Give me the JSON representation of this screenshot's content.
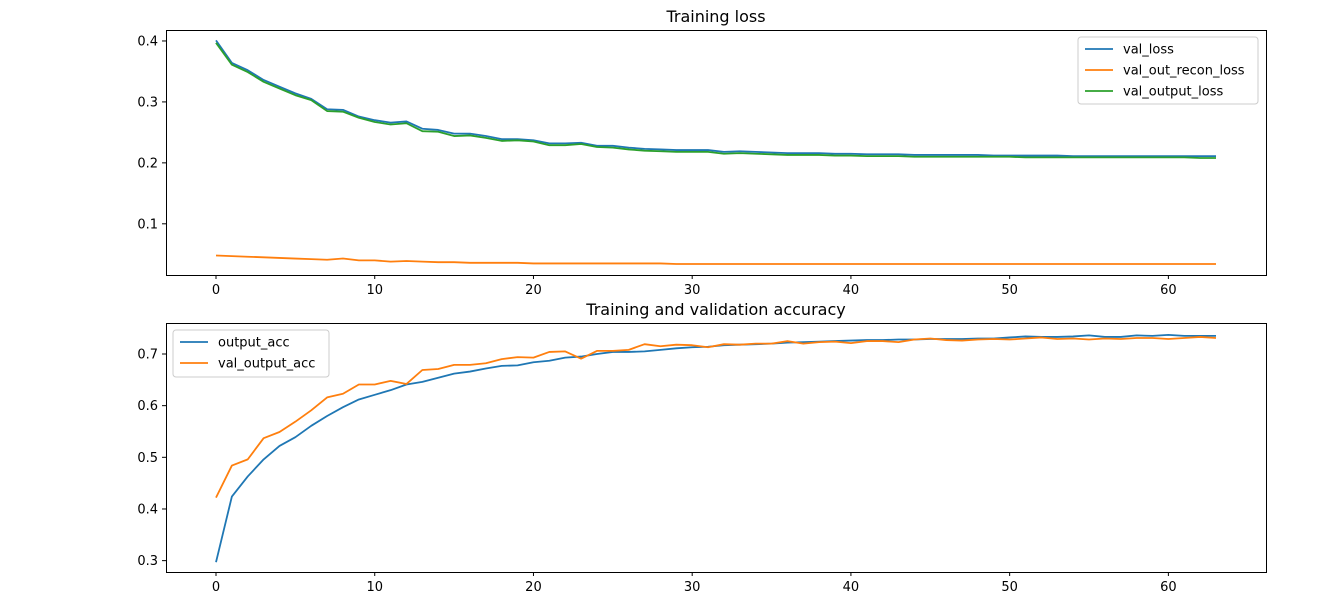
{
  "chart_data": [
    {
      "type": "line",
      "title": "Training loss",
      "xlabel": "",
      "ylabel": "",
      "xlim": [
        -3.15,
        66.15
      ],
      "ylim": [
        0.016,
        0.418
      ],
      "xticks": [
        0,
        10,
        20,
        30,
        40,
        50,
        60
      ],
      "yticks": [
        0.1,
        0.2,
        0.3,
        0.4
      ],
      "ytick_labels": [
        "0.1",
        "0.2",
        "0.3",
        "0.4"
      ],
      "grid": false,
      "legend": "upper right",
      "x": [
        0,
        1,
        2,
        3,
        4,
        5,
        6,
        7,
        8,
        9,
        10,
        11,
        12,
        13,
        14,
        15,
        16,
        17,
        18,
        19,
        20,
        21,
        22,
        23,
        24,
        25,
        26,
        27,
        28,
        29,
        30,
        31,
        32,
        33,
        34,
        35,
        36,
        37,
        38,
        39,
        40,
        41,
        42,
        43,
        44,
        45,
        46,
        47,
        48,
        49,
        50,
        51,
        52,
        53,
        54,
        55,
        56,
        57,
        58,
        59,
        60,
        61,
        62,
        63
      ],
      "series": [
        {
          "name": "val_loss",
          "color": "#1f77b4",
          "values": [
            0.401,
            0.364,
            0.352,
            0.336,
            0.325,
            0.314,
            0.305,
            0.288,
            0.287,
            0.276,
            0.27,
            0.266,
            0.268,
            0.256,
            0.254,
            0.248,
            0.248,
            0.244,
            0.239,
            0.239,
            0.237,
            0.232,
            0.232,
            0.233,
            0.228,
            0.228,
            0.225,
            0.223,
            0.222,
            0.221,
            0.221,
            0.221,
            0.218,
            0.219,
            0.218,
            0.217,
            0.216,
            0.216,
            0.216,
            0.215,
            0.215,
            0.214,
            0.214,
            0.214,
            0.213,
            0.213,
            0.213,
            0.213,
            0.213,
            0.212,
            0.212,
            0.212,
            0.212,
            0.212,
            0.211,
            0.211,
            0.211,
            0.211,
            0.211,
            0.211,
            0.211,
            0.211,
            0.211,
            0.211
          ]
        },
        {
          "name": "val_out_recon_loss",
          "color": "#ff7f0e",
          "values": [
            0.048,
            0.047,
            0.046,
            0.045,
            0.044,
            0.043,
            0.042,
            0.041,
            0.043,
            0.04,
            0.04,
            0.038,
            0.039,
            0.038,
            0.037,
            0.037,
            0.036,
            0.036,
            0.036,
            0.036,
            0.035,
            0.035,
            0.035,
            0.035,
            0.035,
            0.035,
            0.035,
            0.035,
            0.035,
            0.034,
            0.034,
            0.034,
            0.034,
            0.034,
            0.034,
            0.034,
            0.034,
            0.034,
            0.034,
            0.034,
            0.034,
            0.034,
            0.034,
            0.034,
            0.034,
            0.034,
            0.034,
            0.034,
            0.034,
            0.034,
            0.034,
            0.034,
            0.034,
            0.034,
            0.034,
            0.034,
            0.034,
            0.034,
            0.034,
            0.034,
            0.034,
            0.034,
            0.034,
            0.034
          ]
        },
        {
          "name": "val_output_loss",
          "color": "#2ca02c",
          "values": [
            0.397,
            0.361,
            0.349,
            0.333,
            0.322,
            0.311,
            0.303,
            0.285,
            0.284,
            0.274,
            0.267,
            0.263,
            0.265,
            0.252,
            0.251,
            0.244,
            0.245,
            0.241,
            0.236,
            0.237,
            0.235,
            0.229,
            0.229,
            0.231,
            0.226,
            0.225,
            0.222,
            0.22,
            0.219,
            0.218,
            0.218,
            0.218,
            0.215,
            0.216,
            0.215,
            0.214,
            0.213,
            0.213,
            0.213,
            0.212,
            0.212,
            0.211,
            0.211,
            0.211,
            0.21,
            0.21,
            0.21,
            0.21,
            0.21,
            0.21,
            0.21,
            0.209,
            0.209,
            0.209,
            0.209,
            0.209,
            0.209,
            0.209,
            0.209,
            0.209,
            0.209,
            0.209,
            0.208,
            0.208
          ]
        }
      ]
    },
    {
      "type": "line",
      "title": "Training and validation accuracy",
      "xlabel": "",
      "ylabel": "",
      "xlim": [
        -3.15,
        66.15
      ],
      "ylim": [
        0.278,
        0.76
      ],
      "xticks": [
        0,
        10,
        20,
        30,
        40,
        50,
        60
      ],
      "yticks": [
        0.3,
        0.4,
        0.5,
        0.6,
        0.7
      ],
      "ytick_labels": [
        "0.3",
        "0.4",
        "0.5",
        "0.6",
        "0.7"
      ],
      "grid": false,
      "legend": "upper left",
      "x": [
        0,
        1,
        2,
        3,
        4,
        5,
        6,
        7,
        8,
        9,
        10,
        11,
        12,
        13,
        14,
        15,
        16,
        17,
        18,
        19,
        20,
        21,
        22,
        23,
        24,
        25,
        26,
        27,
        28,
        29,
        30,
        31,
        32,
        33,
        34,
        35,
        36,
        37,
        38,
        39,
        40,
        41,
        42,
        43,
        44,
        45,
        46,
        47,
        48,
        49,
        50,
        51,
        52,
        53,
        54,
        55,
        56,
        57,
        58,
        59,
        60,
        61,
        62,
        63
      ],
      "series": [
        {
          "name": "output_acc",
          "color": "#1f77b4",
          "values": [
            0.297,
            0.424,
            0.463,
            0.496,
            0.522,
            0.539,
            0.561,
            0.58,
            0.597,
            0.612,
            0.621,
            0.63,
            0.641,
            0.646,
            0.654,
            0.662,
            0.666,
            0.672,
            0.677,
            0.678,
            0.684,
            0.687,
            0.693,
            0.695,
            0.7,
            0.704,
            0.704,
            0.705,
            0.708,
            0.711,
            0.713,
            0.714,
            0.717,
            0.718,
            0.719,
            0.72,
            0.722,
            0.723,
            0.724,
            0.725,
            0.726,
            0.727,
            0.727,
            0.728,
            0.728,
            0.729,
            0.729,
            0.729,
            0.73,
            0.73,
            0.732,
            0.734,
            0.733,
            0.733,
            0.734,
            0.736,
            0.733,
            0.733,
            0.736,
            0.735,
            0.737,
            0.735,
            0.735,
            0.735
          ]
        },
        {
          "name": "val_output_acc",
          "color": "#ff7f0e",
          "values": [
            0.422,
            0.484,
            0.496,
            0.537,
            0.549,
            0.569,
            0.591,
            0.616,
            0.623,
            0.641,
            0.641,
            0.648,
            0.642,
            0.669,
            0.671,
            0.679,
            0.679,
            0.682,
            0.69,
            0.694,
            0.693,
            0.704,
            0.705,
            0.691,
            0.706,
            0.706,
            0.708,
            0.719,
            0.715,
            0.718,
            0.717,
            0.713,
            0.719,
            0.718,
            0.72,
            0.72,
            0.725,
            0.72,
            0.723,
            0.724,
            0.721,
            0.725,
            0.725,
            0.723,
            0.728,
            0.73,
            0.727,
            0.726,
            0.728,
            0.729,
            0.728,
            0.73,
            0.732,
            0.729,
            0.73,
            0.728,
            0.73,
            0.729,
            0.731,
            0.731,
            0.729,
            0.731,
            0.733,
            0.731
          ]
        }
      ]
    }
  ]
}
